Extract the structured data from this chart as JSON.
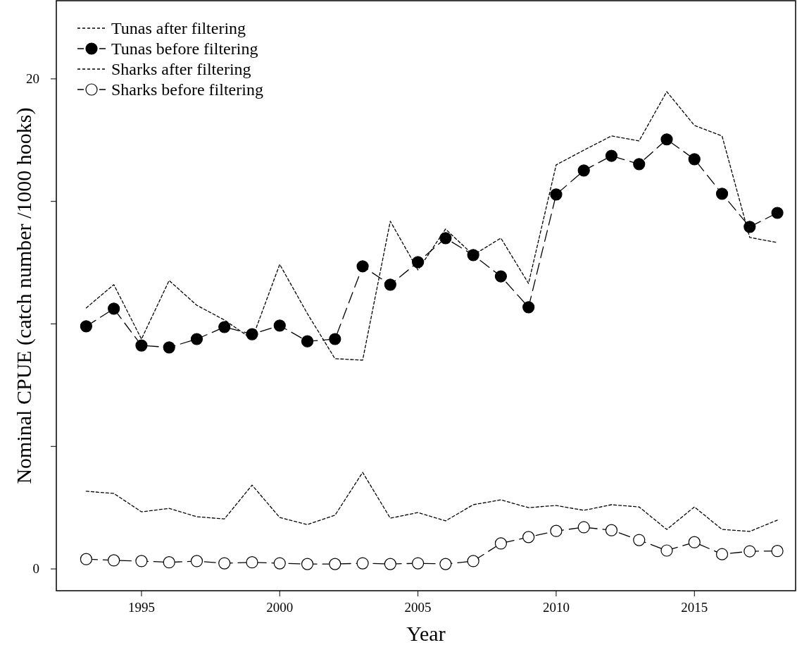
{
  "chart_data": {
    "type": "line",
    "xlabel": "Year",
    "ylabel": "Nominal CPUE (catch number /1000 hooks)",
    "x": [
      1993,
      1994,
      1995,
      1996,
      1997,
      1998,
      1999,
      2000,
      2001,
      2002,
      2003,
      2004,
      2005,
      2006,
      2007,
      2008,
      2009,
      2010,
      2011,
      2012,
      2013,
      2014,
      2015,
      2016,
      2017,
      2018
    ],
    "series": [
      {
        "name": "Tunas after filtering",
        "color": "#000000",
        "line_style": "dotted",
        "marker": "none",
        "values": [
          10.65,
          11.6,
          9.38,
          11.77,
          10.76,
          10.16,
          9.38,
          12.43,
          10.42,
          8.58,
          8.52,
          14.19,
          12.2,
          13.87,
          12.81,
          13.5,
          11.65,
          16.49,
          17.09,
          17.67,
          17.47,
          19.48,
          18.1,
          17.67,
          13.53,
          13.32
        ]
      },
      {
        "name": "Tunas before filtering",
        "color": "#000000",
        "line_style": "dashed",
        "marker": "circle",
        "values": [
          9.9,
          10.62,
          9.12,
          9.04,
          9.38,
          9.87,
          9.58,
          9.93,
          9.29,
          9.38,
          12.35,
          11.6,
          12.52,
          13.5,
          12.81,
          11.94,
          10.68,
          15.28,
          16.26,
          16.86,
          16.52,
          17.53,
          16.72,
          15.31,
          13.96,
          14.53
        ]
      },
      {
        "name": "Sharks after filtering",
        "color": "#000000",
        "line_style": "dotted",
        "marker": "none",
        "values": [
          3.17,
          3.08,
          2.33,
          2.47,
          2.13,
          2.04,
          3.42,
          2.1,
          1.81,
          2.19,
          3.94,
          2.07,
          2.3,
          1.96,
          2.62,
          2.82,
          2.5,
          2.59,
          2.39,
          2.62,
          2.53,
          1.61,
          2.53,
          1.61,
          1.53,
          1.99
        ]
      },
      {
        "name": "Sharks before filtering",
        "color": "#000000",
        "line_style": "dashed",
        "marker": "circle",
        "values": [
          0.4,
          0.35,
          0.32,
          0.27,
          0.32,
          0.23,
          0.27,
          0.23,
          0.2,
          0.2,
          0.23,
          0.2,
          0.23,
          0.2,
          0.32,
          1.04,
          1.3,
          1.55,
          1.7,
          1.58,
          1.18,
          0.75,
          1.09,
          0.6,
          0.72,
          0.73
        ]
      }
    ],
    "xlim": [
      1991.92,
      2018.66
    ],
    "xticks": [
      1995,
      2000,
      2005,
      2010,
      2015
    ],
    "ylim": [
      -0.89,
      23.19
    ],
    "yticks": [
      0,
      {
        "value": 5,
        "label": null
      },
      {
        "value": 10,
        "label": null
      },
      {
        "value": 15,
        "label": null
      },
      20
    ],
    "grid": false,
    "legend": "top left"
  }
}
